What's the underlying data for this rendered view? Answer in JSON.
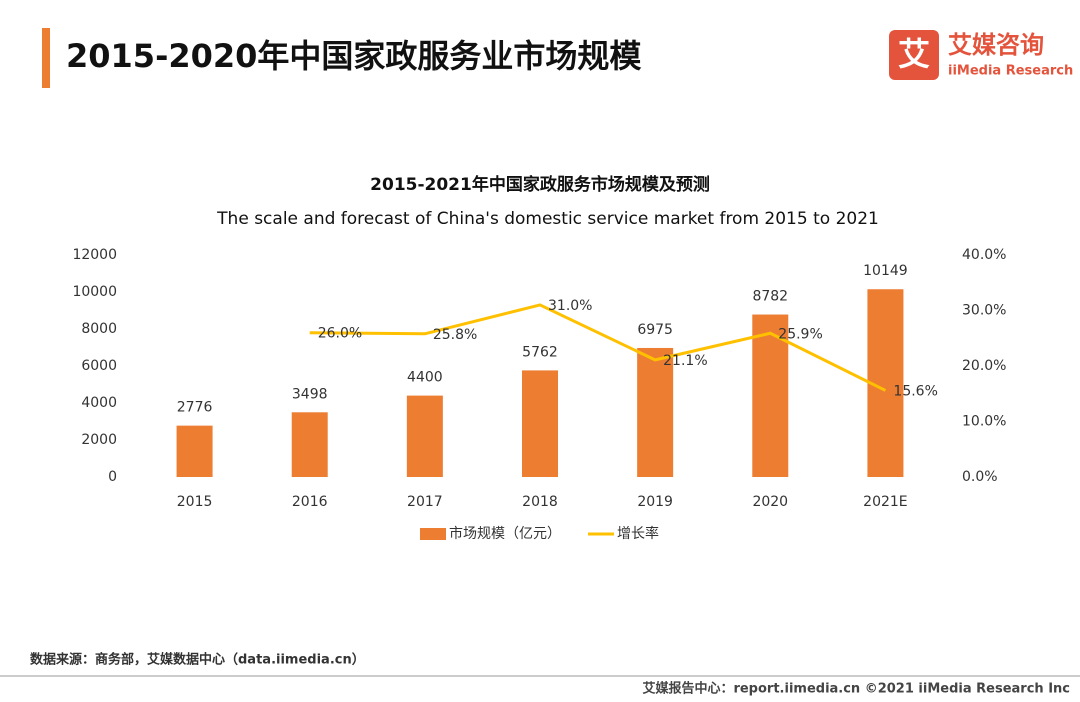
{
  "header": {
    "title": "2015-2020年中国家政服务业市场规模",
    "logo_mark": "艾",
    "logo_cn": "艾媒咨询",
    "logo_en": "iiMedia Research"
  },
  "chart_data": {
    "type": "bar",
    "title": "2015-2021年中国家政服务市场规模及预测",
    "subtitle": "The scale and forecast of China's domestic service market from 2015 to 2021",
    "categories": [
      "2015",
      "2016",
      "2017",
      "2018",
      "2019",
      "2020",
      "2021E"
    ],
    "series": [
      {
        "name": "市场规模（亿元）",
        "type": "bar",
        "color": "#ed7d31",
        "values": [
          2776,
          3498,
          4400,
          5762,
          6975,
          8782,
          10149
        ]
      },
      {
        "name": "增长率",
        "type": "line",
        "axis": "y2",
        "color": "#ffc000",
        "values": [
          null,
          26.0,
          25.8,
          31.0,
          21.1,
          25.9,
          15.6
        ],
        "value_labels": [
          null,
          "26.0%",
          "25.8%",
          "31.0%",
          "21.1%",
          "25.9%",
          "15.6%"
        ]
      }
    ],
    "ylim": [
      0,
      12000
    ],
    "yticks": [
      0,
      2000,
      4000,
      6000,
      8000,
      10000,
      12000
    ],
    "y2lim": [
      0,
      40
    ],
    "y2ticks": [
      {
        "value": 0,
        "label": "0.0%"
      },
      {
        "value": 10,
        "label": "10.0%"
      },
      {
        "value": 20,
        "label": "20.0%"
      },
      {
        "value": 30,
        "label": "30.0%"
      },
      {
        "value": 40,
        "label": "40.0%"
      }
    ],
    "grid": false,
    "legend": "bottom"
  },
  "footer": {
    "source": "数据来源：商务部，艾媒数据中心（data.iimedia.cn）",
    "copyright": "艾媒报告中心：report.iimedia.cn  ©2021  iiMedia Research  Inc"
  }
}
